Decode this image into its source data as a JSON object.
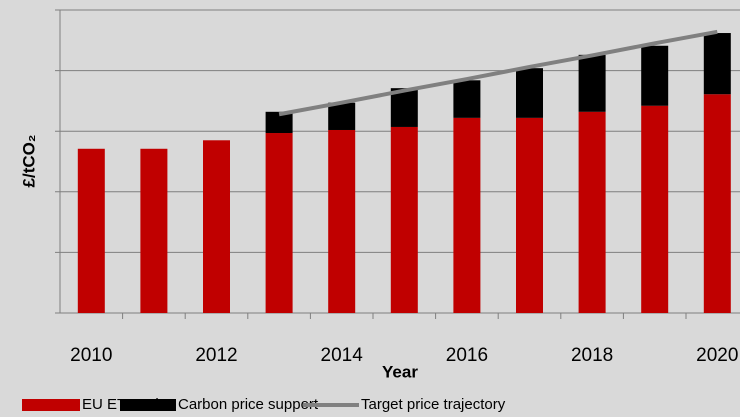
{
  "chart_data": {
    "type": "bar",
    "stacked": true,
    "x_label": "Year",
    "y_label": "£/tCO₂",
    "categories": [
      2010,
      null,
      2012,
      null,
      2014,
      null,
      2016,
      null,
      2018,
      null,
      2020
    ],
    "series": [
      {
        "name": "EU ETS Price",
        "color": "#c00000",
        "values": [
          27.1,
          27.1,
          28.5,
          29.7,
          30.2,
          30.7,
          32.2,
          32.2,
          33.2,
          34.2,
          36.1
        ]
      },
      {
        "name": "Carbon price support",
        "color": "#000000",
        "values": [
          null,
          null,
          null,
          3.5,
          4.5,
          6.4,
          6.2,
          8.2,
          9.4,
          9.9,
          10.1
        ]
      },
      {
        "name": "Target price trajectory",
        "color": "#808080",
        "type": "line",
        "values": [
          null,
          null,
          null,
          32.8,
          34.7,
          36.7,
          38.6,
          40.6,
          42.5,
          44.5,
          46.4
        ]
      }
    ],
    "ylim": [
      0,
      50
    ],
    "yticks": [
      0,
      10,
      20,
      30,
      40,
      50
    ],
    "grid": true,
    "legend": "bottom"
  }
}
